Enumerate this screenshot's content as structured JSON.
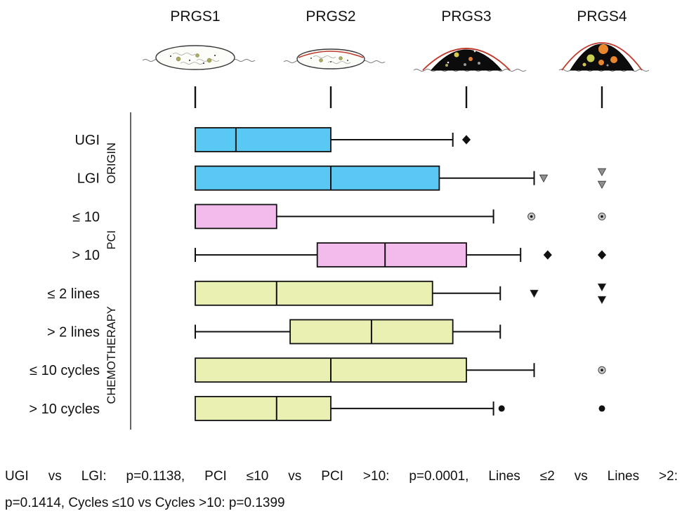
{
  "figure": {
    "columns": [
      {
        "label": "PRGS1",
        "illustration": "flat-nodule-fibrosis-icon"
      },
      {
        "label": "PRGS2",
        "illustration": "flat-nodule-minor-tumor-icon"
      },
      {
        "label": "PRGS3",
        "illustration": "raised-dark-nodule-tumor-icon"
      },
      {
        "label": "PRGS4",
        "illustration": "raised-dark-nodule-vital-tumor-icon"
      }
    ]
  },
  "chart_data": {
    "type": "boxplot",
    "orientation": "horizontal",
    "title": "",
    "x_axis": {
      "ticks": [
        1,
        2,
        3,
        4
      ],
      "tick_labels": [
        "PRGS1",
        "PRGS2",
        "PRGS3",
        "PRGS4"
      ],
      "range": [
        1,
        4.15
      ],
      "grid": false
    },
    "groups": [
      {
        "name": "ORIGIN",
        "color": "#59C8F2",
        "rows": [
          "UGI",
          "LGI"
        ]
      },
      {
        "name": "PCI",
        "color": "#F2BBEC",
        "rows": [
          "≤ 10",
          "> 10"
        ]
      },
      {
        "name": "CHEMOTHERAPY",
        "color": "#EAEFB2",
        "rows": [
          "≤ 2 lines",
          "> 2 lines",
          "≤ 10 cycles",
          "> 10 cycles"
        ]
      }
    ],
    "series": [
      {
        "label": "UGI",
        "group": "ORIGIN",
        "whisker_low": 1.0,
        "q1": 1.0,
        "median": 1.3,
        "q3": 2.0,
        "whisker_high": 2.9,
        "outliers": [
          {
            "v": 3.0,
            "shape": "diamond",
            "fill": "#111111"
          }
        ]
      },
      {
        "label": "LGI",
        "group": "ORIGIN",
        "whisker_low": 1.0,
        "q1": 1.0,
        "median": 2.0,
        "q3": 2.8,
        "whisker_high": 3.5,
        "outliers": [
          {
            "v": 3.57,
            "shape": "triangle-down",
            "fill": "#8f8f8f"
          },
          {
            "v": 4.0,
            "shape": "triangle-down",
            "fill": "#8f8f8f",
            "dy": -9
          },
          {
            "v": 4.0,
            "shape": "triangle-down",
            "fill": "#8f8f8f",
            "dy": 9
          }
        ]
      },
      {
        "label": "≤ 10",
        "group": "PCI",
        "whisker_low": 1.0,
        "q1": 1.0,
        "median": 1.0,
        "q3": 1.6,
        "whisker_high": 3.2,
        "outliers": [
          {
            "v": 3.48,
            "shape": "circle-dot",
            "fill": "#c9c9c9"
          },
          {
            "v": 4.0,
            "shape": "circle-dot",
            "fill": "#c9c9c9"
          }
        ]
      },
      {
        "label": "> 10",
        "group": "PCI",
        "whisker_low": 1.0,
        "q1": 1.9,
        "median": 2.4,
        "q3": 3.0,
        "whisker_high": 3.4,
        "outliers": [
          {
            "v": 3.6,
            "shape": "diamond",
            "fill": "#111111"
          },
          {
            "v": 4.0,
            "shape": "diamond",
            "fill": "#111111"
          }
        ]
      },
      {
        "label": "≤ 2 lines",
        "group": "CHEMOTHERAPY",
        "whisker_low": 1.0,
        "q1": 1.0,
        "median": 1.6,
        "q3": 2.75,
        "whisker_high": 3.25,
        "outliers": [
          {
            "v": 3.5,
            "shape": "triangle-down",
            "fill": "#111111"
          },
          {
            "v": 4.0,
            "shape": "triangle-down",
            "fill": "#111111",
            "dy": -9
          },
          {
            "v": 4.0,
            "shape": "triangle-down",
            "fill": "#111111",
            "dy": 9
          }
        ]
      },
      {
        "label": "> 2 lines",
        "group": "CHEMOTHERAPY",
        "whisker_low": 1.0,
        "q1": 1.7,
        "median": 2.3,
        "q3": 2.9,
        "whisker_high": 3.25,
        "outliers": []
      },
      {
        "label": "≤ 10 cycles",
        "group": "CHEMOTHERAPY",
        "whisker_low": 1.0,
        "q1": 1.0,
        "median": 2.0,
        "q3": 3.0,
        "whisker_high": 3.5,
        "outliers": [
          {
            "v": 4.0,
            "shape": "circle-dot",
            "fill": "#c9c9c9"
          }
        ]
      },
      {
        "label": "> 10 cycles",
        "group": "CHEMOTHERAPY",
        "whisker_low": 1.0,
        "q1": 1.0,
        "median": 1.6,
        "q3": 2.0,
        "whisker_high": 3.2,
        "outliers": [
          {
            "v": 3.26,
            "shape": "circle",
            "fill": "#111111"
          },
          {
            "v": 4.0,
            "shape": "circle",
            "fill": "#111111"
          }
        ]
      }
    ]
  },
  "caption": {
    "line1": "UGI vs LGI: p=0.1138, PCI ≤10 vs PCI >10: p=0.0001, Lines ≤2 vs Lines >2:",
    "line2": "p=0.1414,  Cycles ≤10 vs Cycles >10: p=0.1399"
  }
}
